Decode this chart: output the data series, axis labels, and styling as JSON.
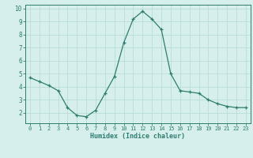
{
  "x": [
    0,
    1,
    2,
    3,
    4,
    5,
    6,
    7,
    8,
    9,
    10,
    11,
    12,
    13,
    14,
    15,
    16,
    17,
    18,
    19,
    20,
    21,
    22,
    23
  ],
  "y": [
    4.7,
    4.4,
    4.1,
    3.7,
    2.4,
    1.8,
    1.7,
    2.2,
    3.5,
    4.8,
    7.4,
    9.2,
    9.8,
    9.2,
    8.4,
    5.0,
    3.7,
    3.6,
    3.5,
    3.0,
    2.7,
    2.5,
    2.4,
    2.4
  ],
  "xlim": [
    -0.5,
    23.5
  ],
  "ylim": [
    1.2,
    10.3
  ],
  "xticks": [
    0,
    1,
    2,
    3,
    4,
    5,
    6,
    7,
    8,
    9,
    10,
    11,
    12,
    13,
    14,
    15,
    16,
    17,
    18,
    19,
    20,
    21,
    22,
    23
  ],
  "yticks": [
    2,
    3,
    4,
    5,
    6,
    7,
    8,
    9,
    10
  ],
  "xlabel": "Humidex (Indice chaleur)",
  "line_color": "#2e7d6e",
  "marker": "+",
  "bg_color": "#d6efed",
  "grid_color": "#b8dcd9",
  "tick_color": "#2e7d6e",
  "label_fontsize": 6.0,
  "tick_fontsize": 5.0
}
